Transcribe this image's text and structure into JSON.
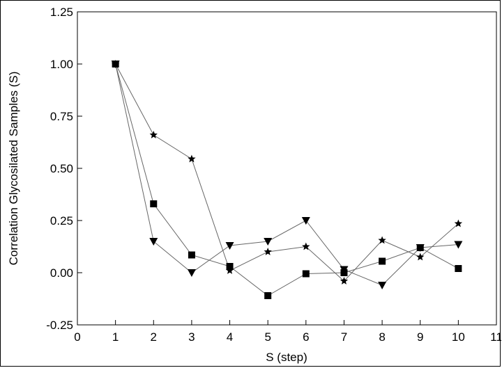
{
  "chart_data": {
    "type": "line",
    "title": "",
    "xlabel": "S (step)",
    "ylabel": "Correlation Glycosilated Samples (S)",
    "xlim": [
      0,
      11
    ],
    "ylim": [
      -0.25,
      1.25
    ],
    "xticks": [
      0,
      1,
      2,
      3,
      4,
      5,
      6,
      7,
      8,
      9,
      10,
      11
    ],
    "yticks": [
      -0.25,
      0.0,
      0.25,
      0.5,
      0.75,
      1.0,
      1.25
    ],
    "xtick_labels": [
      "0",
      "1",
      "2",
      "3",
      "4",
      "5",
      "6",
      "7",
      "8",
      "9",
      "10",
      "11"
    ],
    "ytick_labels": [
      "-0.25",
      "0.00",
      "0.25",
      "0.50",
      "0.75",
      "1.00",
      "1.25"
    ],
    "grid": false,
    "legend": "none",
    "x": [
      1,
      2,
      3,
      4,
      5,
      6,
      7,
      8,
      9,
      10
    ],
    "series": [
      {
        "marker": "square",
        "color": "#000000",
        "values": [
          1.0,
          0.33,
          0.085,
          0.03,
          -0.11,
          -0.005,
          0.0,
          0.055,
          0.12,
          0.02
        ]
      },
      {
        "marker": "triangle-down",
        "color": "#000000",
        "values": [
          1.0,
          0.15,
          0.0,
          0.13,
          0.15,
          0.25,
          0.015,
          -0.06,
          0.12,
          0.135
        ]
      },
      {
        "marker": "star",
        "color": "#000000",
        "values": [
          1.0,
          0.66,
          0.545,
          0.01,
          0.1,
          0.125,
          -0.04,
          0.155,
          0.075,
          0.235
        ]
      }
    ]
  }
}
